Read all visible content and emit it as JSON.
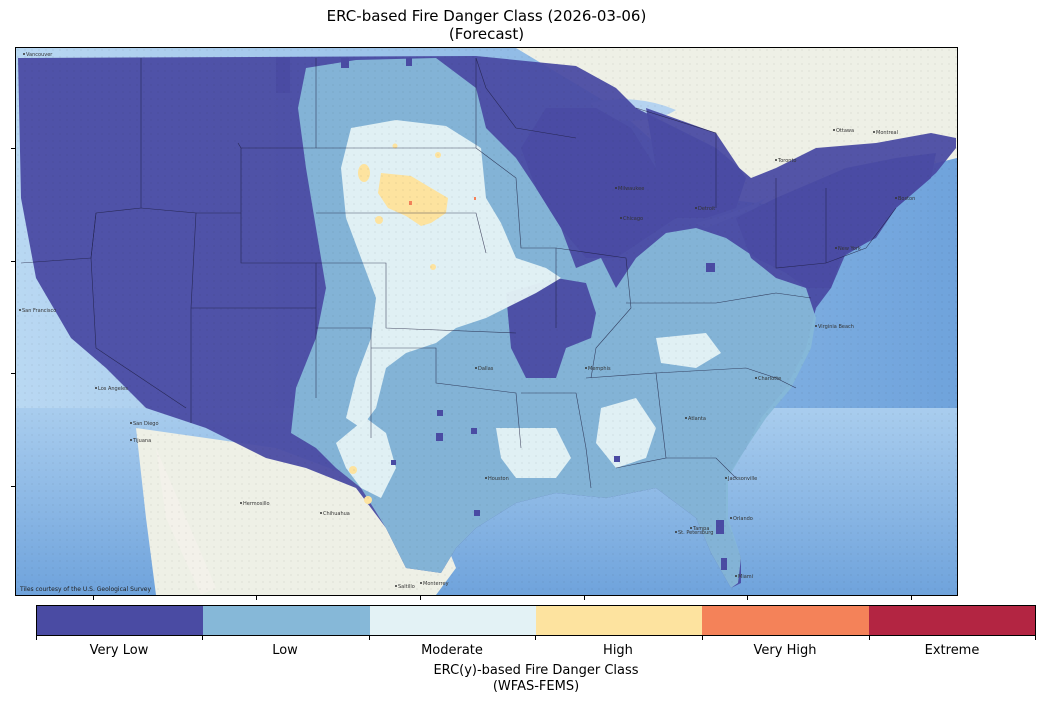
{
  "title": {
    "line1": "ERC-based Fire Danger Class (2026-03-06)",
    "line2": "(Forecast)"
  },
  "map": {
    "attribution": "Tiles courtesy of the U.S. Geological Survey",
    "basemap_colors": {
      "ocean": "#a9cdee",
      "deep_ocean": "#6fa3dc",
      "land": "#eef0e6",
      "lake": "#b5d3f0"
    },
    "city_labels": [
      "Vancouver",
      "Ottawa",
      "Montreal",
      "Toronto",
      "Milwaukee",
      "Chicago",
      "Detroit",
      "Boston",
      "New York",
      "San Francisco",
      "Los Angeles",
      "San Diego",
      "Tijuana",
      "Hermosillo",
      "Chihuahua",
      "Monterrey",
      "Saltillo",
      "Dallas",
      "Houston",
      "Memphis",
      "Atlanta",
      "Charlotte",
      "Virginia Beach",
      "Jacksonville",
      "Tampa",
      "Miami",
      "Orlando",
      "St. Petersburg"
    ]
  },
  "legend": {
    "classes": [
      {
        "label": "Very Low",
        "color": "#4a4ba3"
      },
      {
        "label": "Low",
        "color": "#86b8d8"
      },
      {
        "label": "Moderate",
        "color": "#e3f2f5"
      },
      {
        "label": "High",
        "color": "#fde39f"
      },
      {
        "label": "Very High",
        "color": "#f48259"
      },
      {
        "label": "Extreme",
        "color": "#b32542"
      }
    ],
    "caption_line1": "ERC(y)-based Fire Danger Class",
    "caption_line2": "(WFAS-FEMS)"
  }
}
